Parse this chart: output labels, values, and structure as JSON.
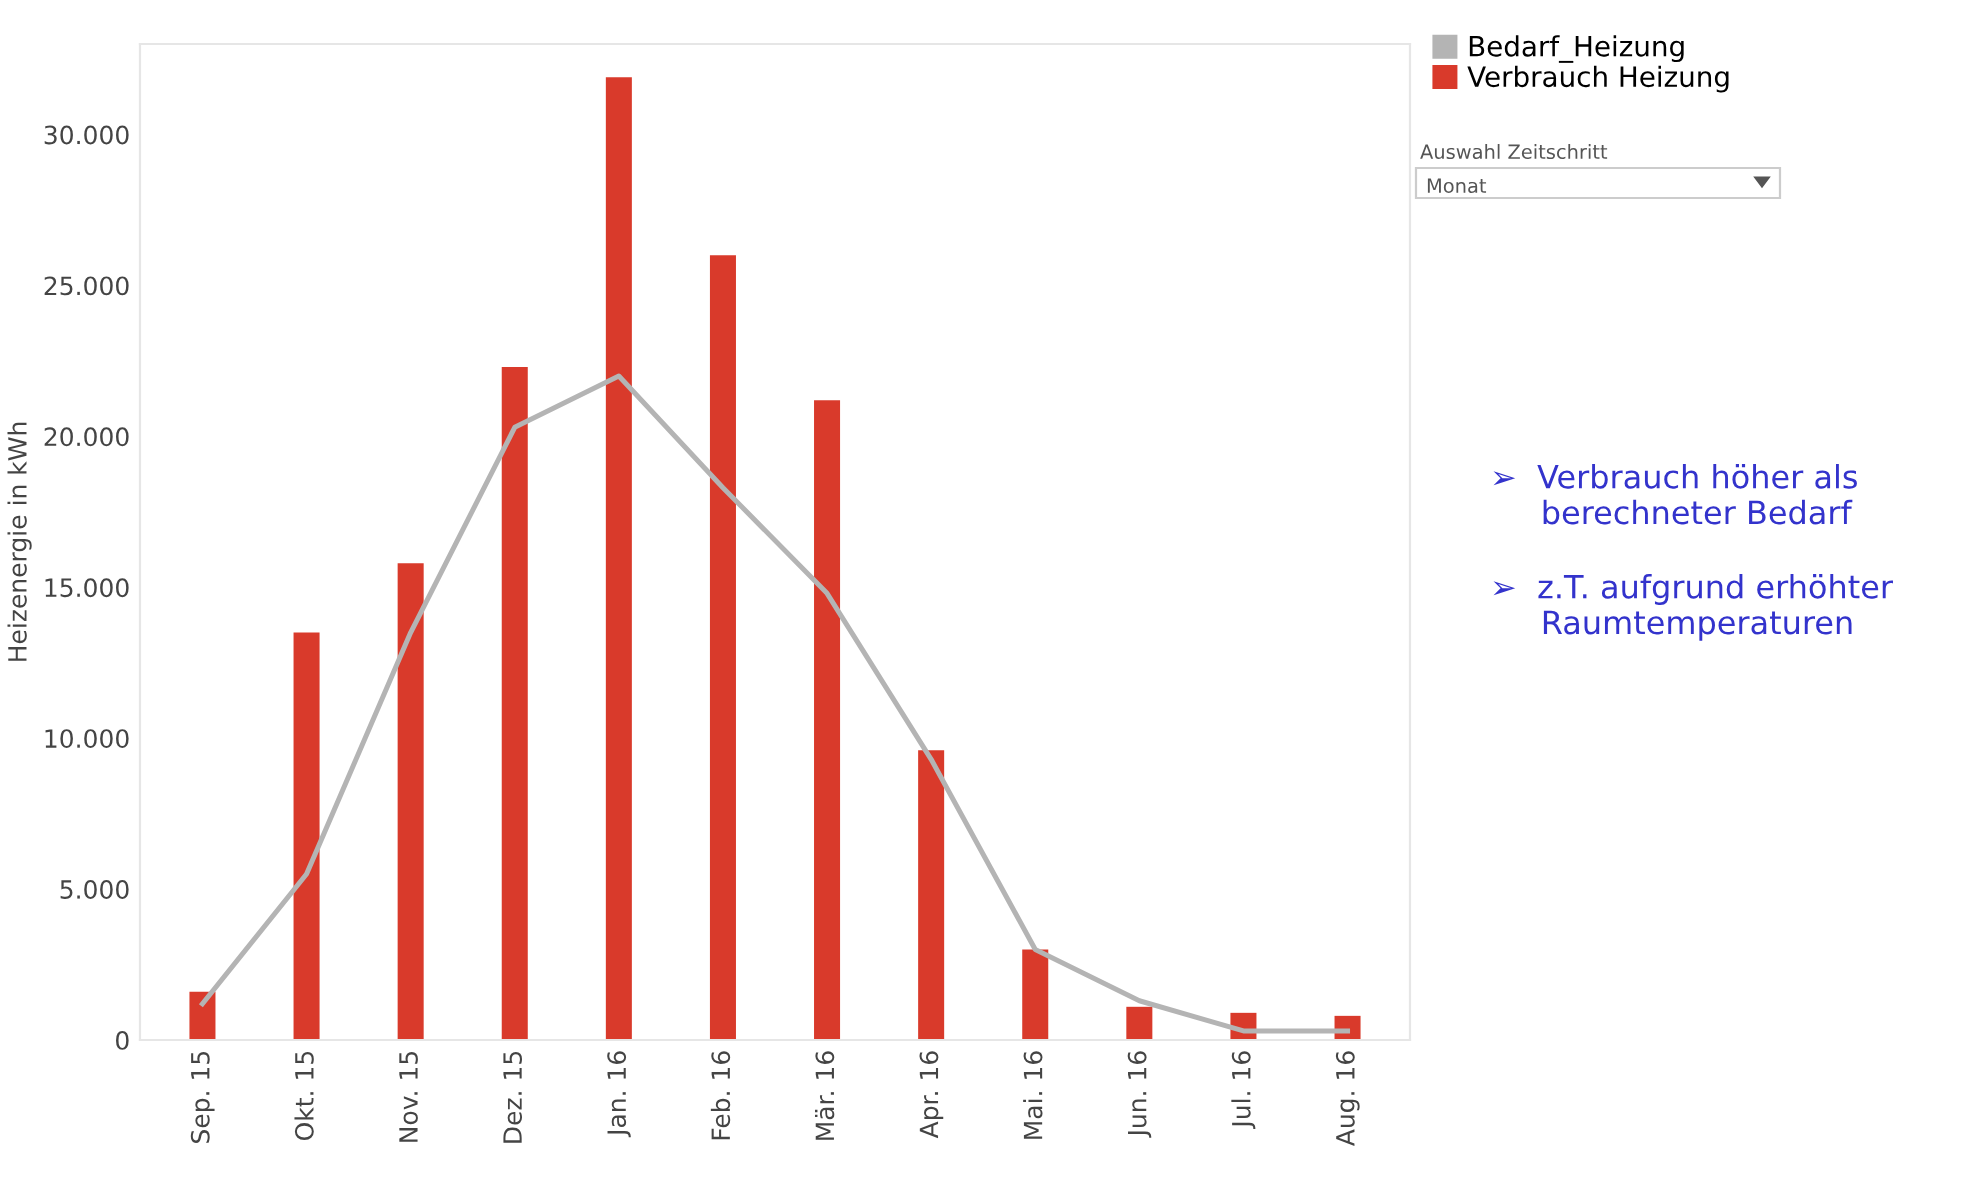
{
  "chart_data": {
    "type": "bar",
    "ylabel": "Heizenergie in kWh",
    "categories": [
      "Sep. 15",
      "Okt. 15",
      "Nov. 15",
      "Dez. 15",
      "Jan. 16",
      "Feb. 16",
      "Mär. 16",
      "Apr. 16",
      "Mai. 16",
      "Jun. 16",
      "Jul. 16",
      "Aug. 16"
    ],
    "series": [
      {
        "name": "Bedarf_Heizung",
        "type": "line",
        "color": "#b4b4b4",
        "values": [
          1200,
          5500,
          13500,
          20300,
          22000,
          18300,
          14800,
          9300,
          3000,
          1300,
          300,
          300
        ]
      },
      {
        "name": "Verbrauch Heizung",
        "color": "#d93a2b",
        "values": [
          1600,
          13500,
          15800,
          22300,
          31900,
          26000,
          21200,
          9600,
          3000,
          1100,
          900,
          800
        ]
      }
    ],
    "ylim": [
      0,
      33000
    ],
    "yticks": [
      {
        "value": 0,
        "label": "0"
      },
      {
        "value": 5000,
        "label": "5.000"
      },
      {
        "value": 10000,
        "label": "10.000"
      },
      {
        "value": 15000,
        "label": "15.000"
      },
      {
        "value": 20000,
        "label": "20.000"
      },
      {
        "value": 25000,
        "label": "25.000"
      },
      {
        "value": 30000,
        "label": "30.000"
      }
    ],
    "legend": "top right",
    "grid": false,
    "annotations": [
      "Auswahl Zeitschritt",
      "Monat",
      "➢  Verbrauch höher als\n     berechneter Bedarf",
      "➢  z.T. aufgrund erhöhter\n     Raumtemperaturen"
    ]
  }
}
